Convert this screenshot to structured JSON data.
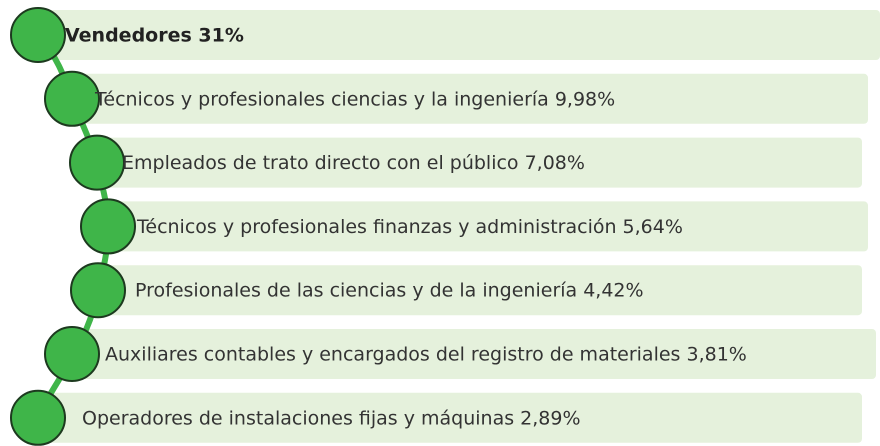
{
  "items": [
    {
      "label": "Vendedores 31%"
    },
    {
      "label": "Técnicos y profesionales ciencias y la ingeniería 9,98%"
    },
    {
      "label": "Empleados de trato directo con el público  7,08%"
    },
    {
      "label": "Técnicos y profesionales finanzas y administración  5,64%"
    },
    {
      "label": "Profesionales de las ciencias y de la ingeniería 4,42%"
    },
    {
      "label": "Auxiliares contables y encargados del registro de materiales 3,81%"
    },
    {
      "label": "Operadores de instalaciones fijas y máquinas 2,89%"
    }
  ]
}
